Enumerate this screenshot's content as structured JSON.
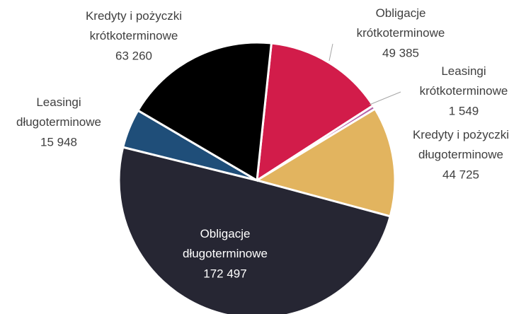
{
  "chart_data": {
    "type": "pie",
    "categories": [
      "Obligacje krótkoterminowe",
      "Leasingi krótkoterminowe",
      "Kredyty i pożyczki długoterminowe",
      "Obligacje długoterminowe",
      "Leasingi długoterminowe",
      "Kredyty i pożyczki krótkoterminowe"
    ],
    "values": [
      49385,
      1549,
      44725,
      172497,
      15948,
      63260
    ],
    "value_labels": [
      "49 385",
      "1 549",
      "44 725",
      "172 497",
      "15 948",
      "63 260"
    ],
    "colors": [
      "#d21c4a",
      "#b564a8",
      "#e2b45f",
      "#262633",
      "#1f4e79",
      "#000000"
    ]
  }
}
